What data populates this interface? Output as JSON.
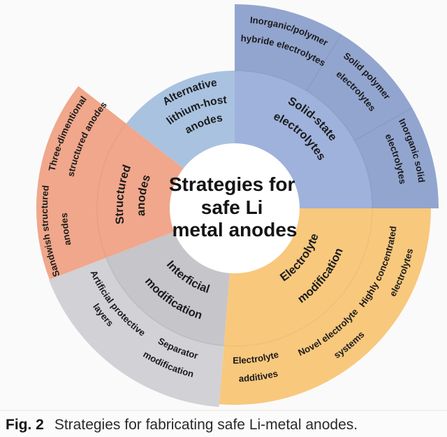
{
  "title": {
    "line1": "Strategies for",
    "line2": "safe Li",
    "line3": "metal anodes"
  },
  "caption": {
    "tag": "Fig. 2",
    "text": "Strategies for fabricating safe Li-metal anodes."
  },
  "colors": {
    "background": "#fbfafa",
    "center_circle": "#ffffff",
    "ink": "#1b1b1b"
  },
  "chart_data": {
    "type": "sunburst",
    "center_label": "Strategies for safe Li metal anodes",
    "rings": 2,
    "segments": [
      {
        "name": "Solid-state electrolytes",
        "label1": "Solid-state",
        "label2": "electrolytes",
        "color_inner": "#9eb2db",
        "color_outer": "#92a5cf",
        "children": [
          {
            "line1": "Inorganic/polymer",
            "line2": "hybride electrolytes"
          },
          {
            "line1": "Solid polymer",
            "line2": "electrolytes"
          },
          {
            "line1": "Inorganic solid",
            "line2": "electrolytes"
          }
        ]
      },
      {
        "name": "Electrolyte modification",
        "label1": "Electrolyte",
        "label2": "modification",
        "color": "#f8c87d",
        "children": [
          {
            "line1": "Highly concentrated",
            "line2": "electrolytes"
          },
          {
            "line1": "Novel electrolyte",
            "line2": "systems"
          },
          {
            "line1": "Electrolyte",
            "line2": "additives"
          }
        ]
      },
      {
        "name": "Interficial modification",
        "label1": "Interficial",
        "label2": "modification",
        "color_inner": "#c6c5ca",
        "color_outer": "#d2d1d5",
        "children": [
          {
            "line1": "Separator",
            "line2": "modification"
          },
          {
            "line1": "Artificial protective",
            "line2": "layers"
          }
        ]
      },
      {
        "name": "Structured anodes",
        "label1": "Structured",
        "label2": "anodes",
        "color": "#f0a78b",
        "children": [
          {
            "line1": "Sandwish structured",
            "line2": "anodes"
          },
          {
            "line1": "Three-dimentional",
            "line2": "structured anodes"
          }
        ]
      },
      {
        "name": "Alternative lithium-host anodes",
        "label1": "Alternative",
        "label2": "lithium-host",
        "label3": "anodes",
        "color": "#a9c2e0"
      }
    ]
  }
}
